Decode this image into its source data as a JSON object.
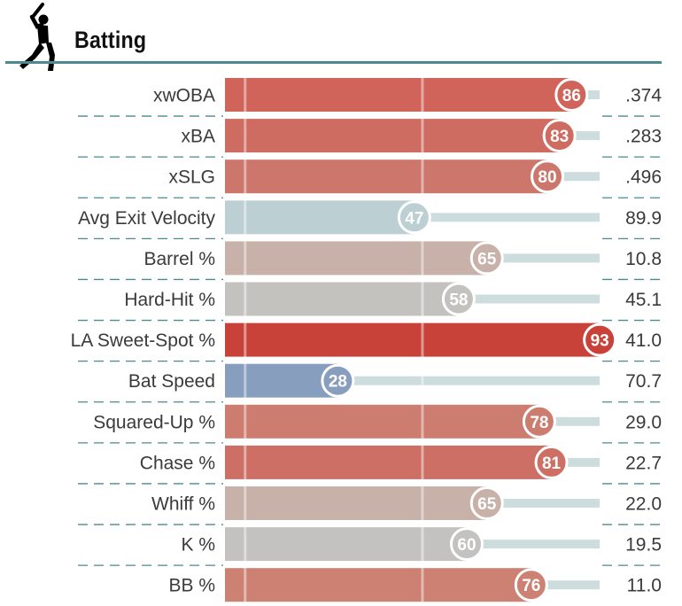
{
  "header": {
    "title": "Batting",
    "icon": "batter-silhouette-icon"
  },
  "colors": {
    "accent_rule": "#4b8a8e",
    "track": "#cddcdc",
    "separator": "#4b8a8e"
  },
  "chart_data": {
    "type": "bar",
    "title": "Batting",
    "xlim": [
      0,
      100
    ],
    "rows": [
      {
        "label": "xwOBA",
        "percentile": 86,
        "value": ".374",
        "color": "#d0635a"
      },
      {
        "label": "xBA",
        "percentile": 83,
        "value": ".283",
        "color": "#cf6c62"
      },
      {
        "label": "xSLG",
        "percentile": 80,
        "value": ".496",
        "color": "#cd776c"
      },
      {
        "label": "Avg Exit Velocity",
        "percentile": 47,
        "value": "89.9",
        "color": "#bcd0d3"
      },
      {
        "label": "Barrel %",
        "percentile": 65,
        "value": "10.8",
        "color": "#c8b1a8"
      },
      {
        "label": "Hard-Hit %",
        "percentile": 58,
        "value": "45.1",
        "color": "#c3c2bf"
      },
      {
        "label": "LA Sweet-Spot %",
        "percentile": 93,
        "value": "41.0",
        "color": "#c8423a"
      },
      {
        "label": "Bat Speed",
        "percentile": 28,
        "value": "70.7",
        "color": "#889ebf"
      },
      {
        "label": "Squared-Up %",
        "percentile": 78,
        "value": "29.0",
        "color": "#cd7d70"
      },
      {
        "label": "Chase %",
        "percentile": 81,
        "value": "22.7",
        "color": "#cd6f64"
      },
      {
        "label": "Whiff %",
        "percentile": 65,
        "value": "22.0",
        "color": "#c8b1a8"
      },
      {
        "label": "K %",
        "percentile": 60,
        "value": "19.5",
        "color": "#c3c2c0"
      },
      {
        "label": "BB %",
        "percentile": 76,
        "value": "11.0",
        "color": "#cd8173"
      }
    ]
  }
}
